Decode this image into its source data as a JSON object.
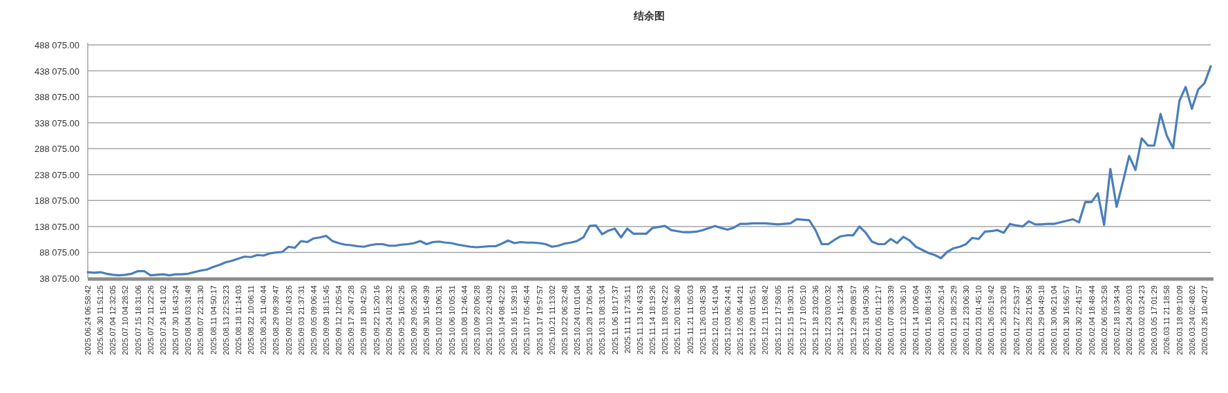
{
  "chart_data": {
    "type": "line",
    "title": "结余图",
    "categories": [
      "2025.06.24 06:58:42",
      null,
      "2025.06.30 11:51:25",
      null,
      "2025.07.04 12:32:05",
      null,
      "2025.07.10 04:28:52",
      null,
      "2025.07.15 18:31:06",
      null,
      "2025.07.22 11:22:26",
      null,
      "2025.07.24 15:41:02",
      null,
      "2025.07.30 16:43:24",
      null,
      "2025.08.04 03:31:49",
      null,
      "2025.08.07 22:31:30",
      null,
      "2025.08.11 04:50:17",
      null,
      "2025.08.13 22:53:23",
      null,
      "2025.08.18 11:14:03",
      null,
      "2025.08.22 10:06:11",
      null,
      "2025.08.26 11:40:44",
      null,
      "2025.08.29 09:39:47",
      null,
      "2025.09.02 10:43:26",
      null,
      "2025.09.03 21:37:31",
      null,
      "2025.09.05 09:06:44",
      null,
      "2025.09.09 18:15:45",
      null,
      "2025.09.12 12:05:54",
      null,
      "2025.09.17 20:47:28",
      null,
      "2025.09.18 10:42:50",
      null,
      "2025.09.22 15:20:16",
      null,
      "2025.09.24 01:28:32",
      null,
      "2025.09.25 16:02:26",
      null,
      "2025.09.29 05:26:30",
      null,
      "2025.09.30 15:49:39",
      null,
      "2025.10.02 13:06:31",
      null,
      "2025.10.06 10:05:31",
      null,
      "2025.10.08 12:46:44",
      null,
      "2025.10.09 20:06:28",
      null,
      "2025.10.10 22:43:09",
      null,
      "2025.10.14 08:42:22",
      null,
      "2025.10.16 15:39:18",
      null,
      "2025.10.17 05:45:44",
      null,
      "2025.10.17 19:57:57",
      null,
      "2025.10.21 11:13:02",
      null,
      "2025.10.22 06:32:48",
      null,
      "2025.10.24 01:01:04",
      null,
      "2025.10.28 17:06:04",
      null,
      "2025.10.31 08:31:04",
      null,
      "2025.11.06 10:17:37",
      null,
      "2025.11.11 17:35:11",
      null,
      "2025.11.13 16:43:53",
      null,
      "2025.11.14 18:19:26",
      null,
      "2025.11.18 03:42:22",
      null,
      "2025.11.20 01:38:40",
      null,
      "2025.11.21 11:05:03",
      null,
      "2025.11.26 03:45:38",
      null,
      "2025.12.01 15:41:04",
      null,
      "2025.12.03 06:24:41",
      null,
      "2025.12.05 05:44:21",
      null,
      "2025.12.09 01:05:51",
      null,
      "2025.12.11 15:08:42",
      null,
      "2025.12.12 17:58:05",
      null,
      "2025.12.15 19:30:31",
      null,
      "2025.12.17 10:05:10",
      null,
      "2025.12.18 23:02:36",
      null,
      "2025.12.23 03:00:32",
      null,
      "2025.12.24 15:12:34",
      null,
      "2025.12.29 09:08:57",
      null,
      "2025.12.31 04:50:36",
      null,
      "2026.01.05 01:12:17",
      null,
      "2026.01.07 08:33:39",
      null,
      "2026.01.12 03:36:10",
      null,
      "2026.01.14 10:06:04",
      null,
      "2026.01.16 08:14:59",
      null,
      "2026.01.20 02:26:14",
      null,
      "2026.01.21 08:25:29",
      null,
      "2026.01.21 23:06:30",
      null,
      "2026.01.23 01:45:10",
      null,
      "2026.01.26 05:19:42",
      null,
      "2026.01.26 23:32:08",
      null,
      "2026.01.27 22:53:37",
      null,
      "2026.01.28 21:06:58",
      null,
      "2026.01.29 04:49:18",
      null,
      "2026.01.30 06:21:04",
      null,
      "2026.01.30 16:56:57",
      null,
      "2026.01.30 22:41:57",
      null,
      "2026.02.04 18:48:44",
      null,
      "2026.02.06 05:32:58",
      null,
      "2026.02.18 10:34:34",
      null,
      "2026.02.24 09:20:03",
      null,
      "2026.03.02 03:24:23",
      null,
      "2026.03.05 17:01:29",
      null,
      "2026.03.11 21:18:58",
      null,
      "2026.03.18 09:10:09",
      null,
      "2026.03.24 02:48:02",
      null,
      "2026.03.26 10:40:27",
      null
    ],
    "series": [
      {
        "color": "#4a7ebb",
        "values": [
          50000,
          49000,
          50000,
          47000,
          45000,
          44000,
          45000,
          47000,
          52000,
          52000,
          44000,
          45000,
          46000,
          44000,
          46000,
          46000,
          47000,
          50000,
          53000,
          55000,
          60000,
          64000,
          69000,
          72000,
          76000,
          80000,
          79000,
          83000,
          82000,
          86000,
          88000,
          89000,
          99000,
          97000,
          110000,
          108000,
          115000,
          117000,
          120000,
          110000,
          106000,
          103000,
          102000,
          100000,
          99000,
          102000,
          104000,
          104000,
          101000,
          101000,
          103000,
          104000,
          106000,
          110000,
          104000,
          108000,
          109000,
          107000,
          106000,
          103000,
          101000,
          99000,
          98000,
          99000,
          100000,
          100000,
          105000,
          111000,
          106000,
          108000,
          107000,
          107000,
          106000,
          104000,
          99000,
          101000,
          105000,
          107000,
          110000,
          117000,
          139000,
          140000,
          123000,
          130000,
          134000,
          117000,
          134000,
          124000,
          124000,
          124000,
          135000,
          137000,
          139000,
          131000,
          129000,
          127000,
          127000,
          128000,
          131000,
          135000,
          139000,
          135000,
          132000,
          136000,
          143000,
          143000,
          144000,
          144000,
          144000,
          143000,
          142000,
          143000,
          144000,
          152000,
          151000,
          150000,
          131000,
          104000,
          104000,
          112000,
          119000,
          121000,
          121000,
          138000,
          126000,
          109000,
          104000,
          104000,
          114000,
          106000,
          118000,
          111000,
          99000,
          93000,
          87000,
          83000,
          77000,
          89000,
          96000,
          99000,
          104000,
          116000,
          114000,
          128000,
          129000,
          131000,
          126000,
          143000,
          140000,
          138000,
          148000,
          142000,
          142000,
          143000,
          143000,
          146000,
          149000,
          152000,
          146000,
          185000,
          185000,
          202000,
          141000,
          249000,
          176000,
          224000,
          274000,
          247000,
          308000,
          294000,
          294000,
          355000,
          313000,
          289000,
          380000,
          407000,
          365000,
          402000,
          414000,
          447000
        ]
      }
    ],
    "ylim": [
      38075,
      488075
    ],
    "yticks": [
      {
        "value": 38075,
        "label": "38 075.00"
      },
      {
        "value": 88075,
        "label": "88 075.00"
      },
      {
        "value": 138075,
        "label": "138 075.00"
      },
      {
        "value": 188075,
        "label": "188 075.00"
      },
      {
        "value": 238075,
        "label": "238 075.00"
      },
      {
        "value": 288075,
        "label": "288 075.00"
      },
      {
        "value": 338075,
        "label": "338 075.00"
      },
      {
        "value": 388075,
        "label": "388 075.00"
      },
      {
        "value": 438075,
        "label": "438 075.00"
      },
      {
        "value": 488075,
        "label": "488 075.00"
      }
    ],
    "grid": "y"
  }
}
